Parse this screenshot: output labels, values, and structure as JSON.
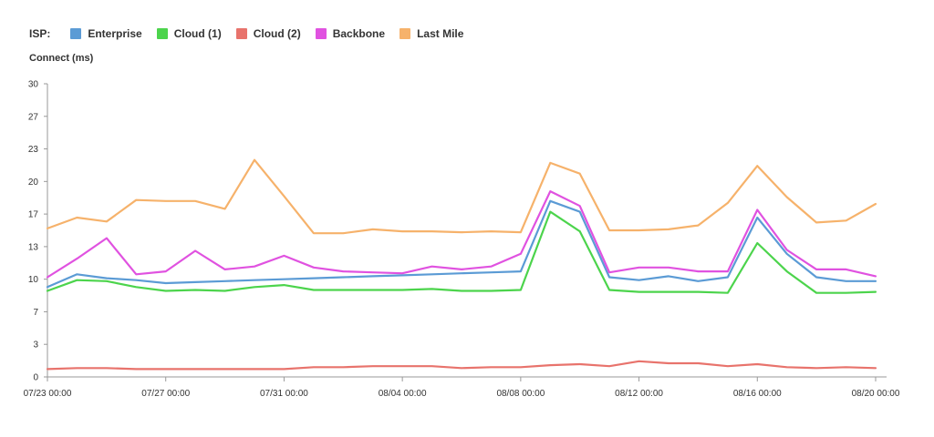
{
  "legend": {
    "prefix": "ISP:"
  },
  "chart_data": {
    "type": "line",
    "ylabel": "Connect (ms)",
    "ylim": [
      0,
      30
    ],
    "yticks": [
      "0",
      "3",
      "7",
      "10",
      "13",
      "17",
      "20",
      "23",
      "27",
      "30"
    ],
    "x": [
      "07/23 00:00",
      "07/24",
      "07/25",
      "07/26",
      "07/27 00:00",
      "07/28",
      "07/29",
      "07/30",
      "07/31 00:00",
      "08/01",
      "08/02",
      "08/03",
      "08/04 00:00",
      "08/05",
      "08/06",
      "08/07",
      "08/08 00:00",
      "08/09",
      "08/10",
      "08/11",
      "08/12 00:00",
      "08/13",
      "08/14",
      "08/15",
      "08/16 00:00",
      "08/17",
      "08/18",
      "08/19",
      "08/20 00:00"
    ],
    "xticks": [
      {
        "index": 0,
        "label": "07/23 00:00"
      },
      {
        "index": 4,
        "label": "07/27 00:00"
      },
      {
        "index": 8,
        "label": "07/31 00:00"
      },
      {
        "index": 12,
        "label": "08/04 00:00"
      },
      {
        "index": 16,
        "label": "08/08 00:00"
      },
      {
        "index": 20,
        "label": "08/12 00:00"
      },
      {
        "index": 24,
        "label": "08/16 00:00"
      },
      {
        "index": 28,
        "label": "08/20 00:00"
      }
    ],
    "grid": false,
    "legend_position": "top-left",
    "series": [
      {
        "name": "Enterprise",
        "color": "#5b9bd5",
        "values": [
          9.2,
          10.5,
          10.1,
          9.9,
          9.6,
          9.7,
          9.8,
          9.9,
          10.0,
          10.1,
          10.2,
          10.3,
          10.4,
          10.5,
          10.6,
          10.7,
          10.8,
          18.0,
          16.9,
          10.2,
          9.9,
          10.3,
          9.8,
          10.2,
          16.3,
          12.6,
          10.2,
          9.8,
          9.8
        ]
      },
      {
        "name": "Cloud (1)",
        "color": "#4cd44c",
        "values": [
          8.8,
          9.9,
          9.8,
          9.2,
          8.8,
          8.9,
          8.8,
          9.2,
          9.4,
          8.9,
          8.9,
          8.9,
          8.9,
          9.0,
          8.8,
          8.8,
          8.9,
          16.9,
          14.9,
          8.9,
          8.7,
          8.7,
          8.7,
          8.6,
          13.7,
          10.8,
          8.6,
          8.6,
          8.7
        ]
      },
      {
        "name": "Cloud (2)",
        "color": "#e8736c",
        "values": [
          0.8,
          0.9,
          0.9,
          0.8,
          0.8,
          0.8,
          0.8,
          0.8,
          0.8,
          1.0,
          1.0,
          1.1,
          1.1,
          1.1,
          0.9,
          1.0,
          1.0,
          1.2,
          1.3,
          1.1,
          1.6,
          1.4,
          1.4,
          1.1,
          1.3,
          1.0,
          0.9,
          1.0,
          0.9
        ]
      },
      {
        "name": "Backbone",
        "color": "#e052e0",
        "values": [
          10.2,
          12.1,
          14.2,
          10.5,
          10.8,
          12.9,
          11.0,
          11.3,
          12.4,
          11.2,
          10.8,
          10.7,
          10.6,
          11.3,
          11.0,
          11.3,
          12.6,
          19.0,
          17.5,
          10.7,
          11.2,
          11.2,
          10.8,
          10.8,
          17.1,
          13.0,
          11.0,
          11.0,
          10.3
        ]
      },
      {
        "name": "Last Mile",
        "color": "#f6b26b",
        "values": [
          15.2,
          16.3,
          15.9,
          18.1,
          18.0,
          18.0,
          17.2,
          22.2,
          18.5,
          14.7,
          14.7,
          15.1,
          14.9,
          14.9,
          14.8,
          14.9,
          14.8,
          21.9,
          20.8,
          15.0,
          15.0,
          15.1,
          15.5,
          17.8,
          21.6,
          18.4,
          15.8,
          16.0,
          17.7
        ]
      }
    ]
  }
}
